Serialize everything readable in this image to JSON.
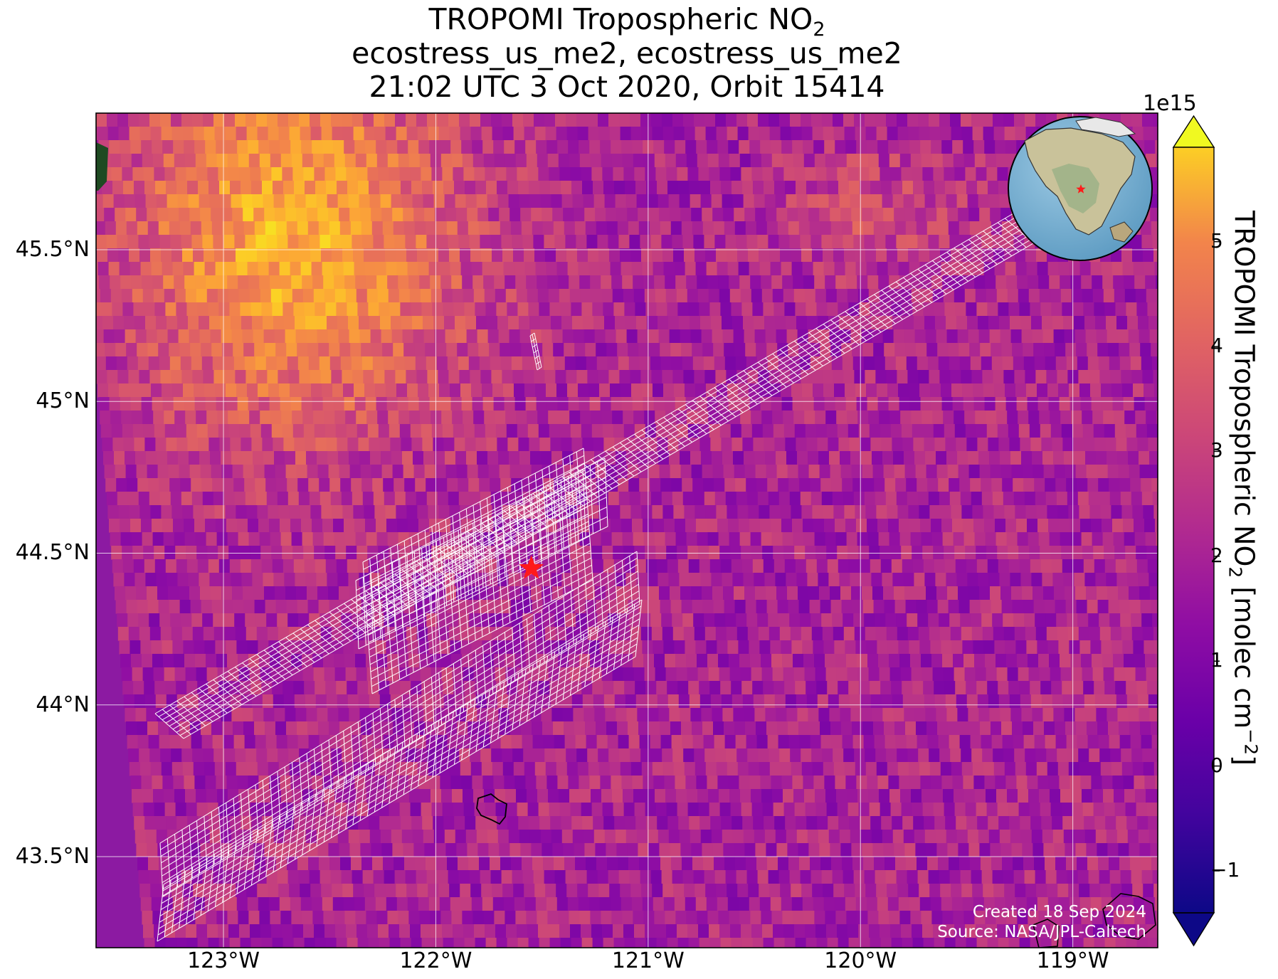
{
  "title": {
    "line1_main": "TROPOMI Tropospheric NO",
    "line1_sub": "2",
    "line2": "ecostress_us_me2, ecostress_us_me2",
    "line3": "21:02 UTC 3 Oct 2020, Orbit 15414"
  },
  "map": {
    "lon_range": [
      -123.6,
      -118.6
    ],
    "lat_range": [
      43.2,
      45.95
    ],
    "lon_ticks": [
      {
        "value": -123,
        "label": "123°W"
      },
      {
        "value": -122,
        "label": "122°W"
      },
      {
        "value": -121,
        "label": "121°W"
      },
      {
        "value": -120,
        "label": "120°W"
      },
      {
        "value": -119,
        "label": "119°W"
      }
    ],
    "lat_ticks": [
      {
        "value": 45.5,
        "label": "45.5°N"
      },
      {
        "value": 45.0,
        "label": "45°N"
      },
      {
        "value": 44.5,
        "label": "44.5°N"
      },
      {
        "value": 44.0,
        "label": "44°N"
      },
      {
        "value": 43.5,
        "label": "43.5°N"
      }
    ],
    "gridlines": true,
    "marker": {
      "type": "red-star",
      "lon": -121.55,
      "lat": 44.45
    },
    "hotspot": {
      "lon": -122.7,
      "lat": 45.55,
      "description_color": "#f7e225"
    },
    "inset_globe": {
      "position": "top-right",
      "marker_lon": -121.55,
      "marker_lat": 44.45
    }
  },
  "colorbar": {
    "exponent_label": "1e15",
    "vmin": -1.4,
    "vmax": 5.9,
    "ticks": [
      {
        "value": 5,
        "label": "5"
      },
      {
        "value": 4,
        "label": "4"
      },
      {
        "value": 3,
        "label": "3"
      },
      {
        "value": 2,
        "label": "2"
      },
      {
        "value": 1,
        "label": "1"
      },
      {
        "value": 0,
        "label": "0"
      },
      {
        "value": -1,
        "label": "−1"
      }
    ],
    "label_main": "TROPOMI Tropospheric NO",
    "label_sub": "2",
    "label_units": " [molec cm",
    "label_sup": "−2",
    "label_end": "]",
    "colormap": "plasma",
    "extend": "both"
  },
  "credits": {
    "created": "Created 18 Sep 2024",
    "source": "Source: NASA/JPL-Caltech"
  }
}
